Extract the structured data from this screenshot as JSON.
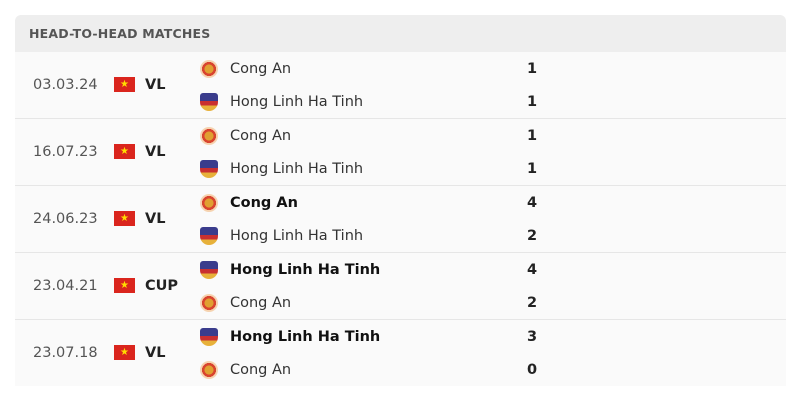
{
  "header": {
    "title": "HEAD-TO-HEAD MATCHES"
  },
  "colors": {
    "flag_red": "#da251d",
    "flag_star": "#ffdd00"
  },
  "matches": [
    {
      "date": "03.03.24",
      "competition": "VL",
      "flag": "vietnam-flag-icon",
      "home": {
        "name": "Cong An",
        "score": "1",
        "logo": "cong-an-logo",
        "win": false
      },
      "away": {
        "name": "Hong Linh Ha Tinh",
        "score": "1",
        "logo": "hong-linh-ha-tinh-logo",
        "win": false
      }
    },
    {
      "date": "16.07.23",
      "competition": "VL",
      "flag": "vietnam-flag-icon",
      "home": {
        "name": "Cong An",
        "score": "1",
        "logo": "cong-an-logo",
        "win": false
      },
      "away": {
        "name": "Hong Linh Ha Tinh",
        "score": "1",
        "logo": "hong-linh-ha-tinh-logo",
        "win": false
      }
    },
    {
      "date": "24.06.23",
      "competition": "VL",
      "flag": "vietnam-flag-icon",
      "home": {
        "name": "Cong An",
        "score": "4",
        "logo": "cong-an-logo",
        "win": true
      },
      "away": {
        "name": "Hong Linh Ha Tinh",
        "score": "2",
        "logo": "hong-linh-ha-tinh-logo",
        "win": false
      }
    },
    {
      "date": "23.04.21",
      "competition": "CUP",
      "flag": "vietnam-flag-icon",
      "home": {
        "name": "Hong Linh Ha Tinh",
        "score": "4",
        "logo": "hong-linh-ha-tinh-logo",
        "win": true
      },
      "away": {
        "name": "Cong An",
        "score": "2",
        "logo": "cong-an-logo",
        "win": false
      }
    },
    {
      "date": "23.07.18",
      "competition": "VL",
      "flag": "vietnam-flag-icon",
      "home": {
        "name": "Hong Linh Ha Tinh",
        "score": "3",
        "logo": "hong-linh-ha-tinh-logo",
        "win": true
      },
      "away": {
        "name": "Cong An",
        "score": "0",
        "logo": "cong-an-logo",
        "win": false
      }
    }
  ]
}
